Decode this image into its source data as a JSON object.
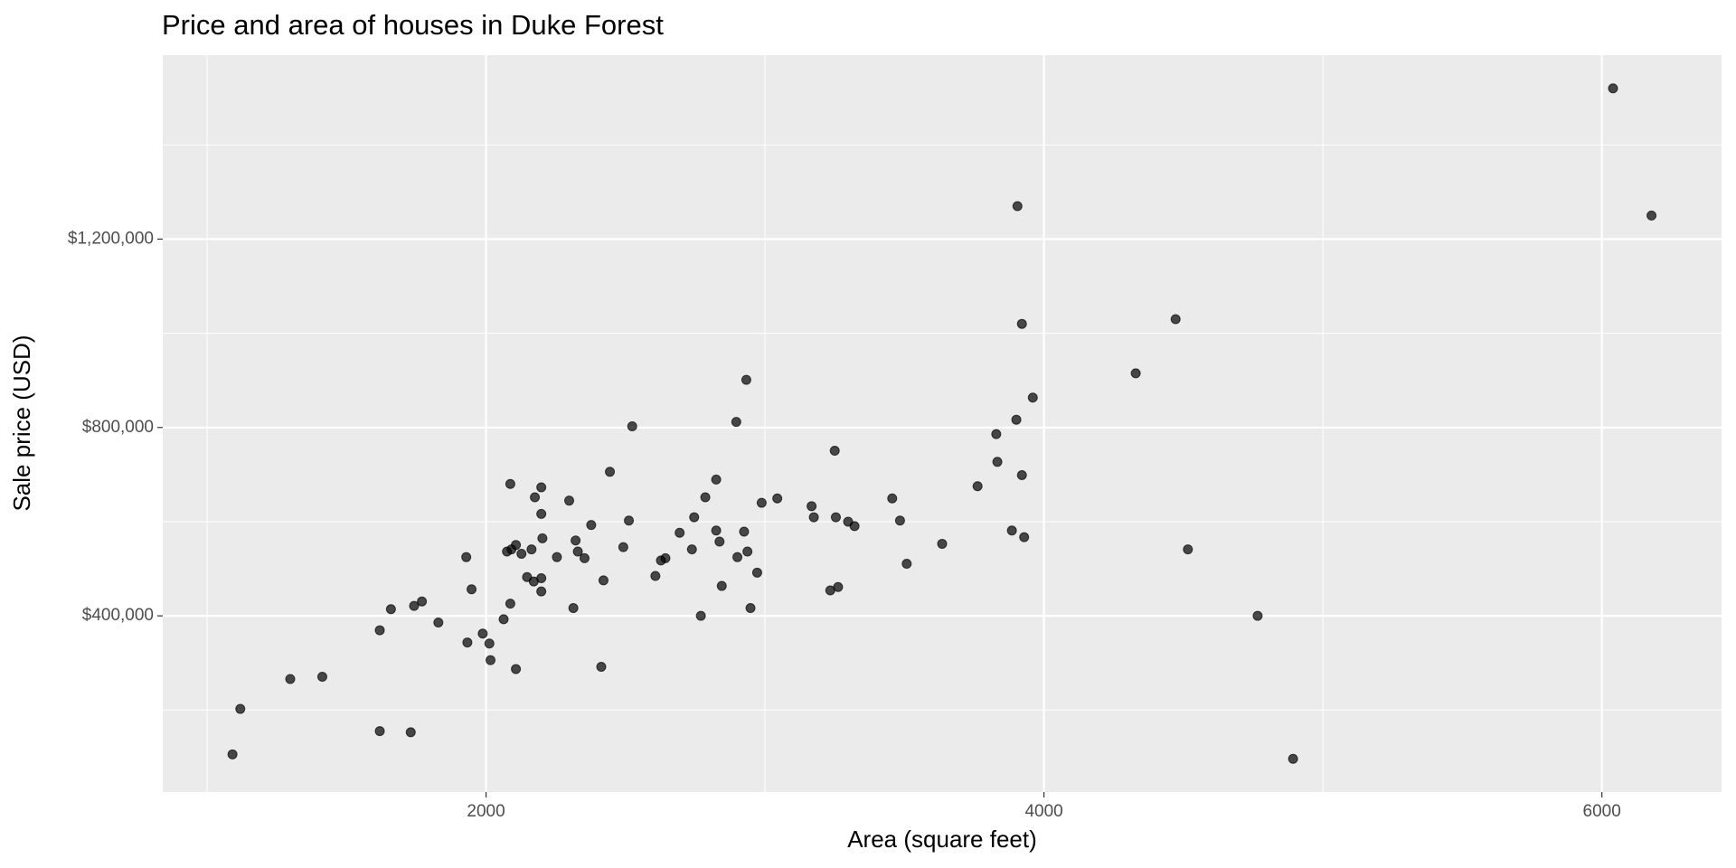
{
  "chart_data": {
    "type": "scatter",
    "title": "Price and area of houses in Duke Forest",
    "x_label": "Area (square feet)",
    "y_label": "Sale price (USD)",
    "color": "#000000",
    "opacity": 0.7,
    "grid": true,
    "xlim": [
      841,
      6429
    ],
    "ylim": [
      25882,
      1590588
    ],
    "xticks": [
      2000,
      4000,
      6000
    ],
    "xminor_ticks": [
      1000,
      3000,
      5000
    ],
    "yticks": [
      {
        "value": 400000,
        "label": "$400,000"
      },
      {
        "value": 800000,
        "label": "$800,000"
      },
      {
        "value": 1200000,
        "label": "$1,200,000"
      }
    ],
    "yminor_ticks": [
      200000,
      600000,
      1000000,
      1400000
    ],
    "x": [
      6040,
      6178,
      3905,
      3921,
      4472,
      4329,
      3960,
      3901,
      3829,
      3833,
      3921,
      3762,
      3885,
      3929,
      4516,
      4766,
      4893,
      3635,
      3456,
      3484,
      3508,
      3250,
      3167,
      3175,
      3254,
      3298,
      3321,
      3234,
      3262,
      2933,
      2897,
      3044,
      2988,
      2825,
      2786,
      2746,
      2694,
      2825,
      2925,
      2837,
      2738,
      2937,
      2901,
      2972,
      2643,
      2627,
      2607,
      2845,
      2770,
      2948,
      2524,
      2444,
      2512,
      2377,
      2492,
      2298,
      2198,
      2175,
      2087,
      2198,
      2202,
      2321,
      2329,
      2353,
      2254,
      2163,
      2107,
      2091,
      2075,
      2127,
      2147,
      2171,
      2198,
      2198,
      2421,
      2313,
      1929,
      1948,
      2087,
      2063,
      1988,
      2012,
      1933,
      2016,
      2107,
      2413,
      1829,
      1770,
      1742,
      1659,
      1619,
      1413,
      1298,
      1119,
      1091,
      1619,
      1730
    ],
    "y": [
      1520000,
      1250000,
      1270000,
      1020000,
      1030000,
      915000,
      863500,
      816500,
      785900,
      727000,
      698800,
      675300,
      581200,
      567000,
      541200,
      400000,
      96500,
      553000,
      649400,
      602400,
      510600,
      750600,
      632900,
      609400,
      609400,
      600000,
      590600,
      454100,
      461200,
      901200,
      811800,
      649400,
      640000,
      689400,
      651800,
      609400,
      576500,
      581200,
      578800,
      557600,
      541200,
      536500,
      524700,
      491800,
      522400,
      517600,
      484700,
      463500,
      400000,
      416500,
      802400,
      705900,
      602400,
      592900,
      545900,
      644700,
      672900,
      651800,
      680000,
      616500,
      564700,
      560000,
      536500,
      522400,
      524700,
      541200,
      550600,
      541200,
      536500,
      531800,
      482400,
      472900,
      480000,
      451800,
      475300,
      416500,
      524700,
      456500,
      425900,
      392900,
      362400,
      341200,
      343500,
      305900,
      287100,
      291800,
      385900,
      430600,
      421200,
      414100,
      369400,
      270600,
      265900,
      202400,
      105900,
      155300,
      152900
    ]
  }
}
